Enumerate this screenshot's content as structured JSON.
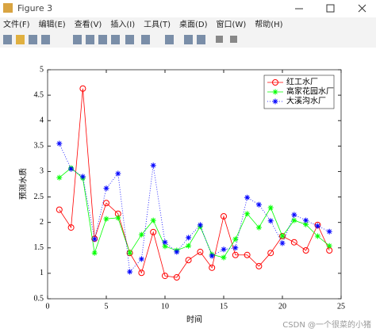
{
  "window": {
    "title": "Figure 3",
    "menu": [
      "文件(F)",
      "编辑(E)",
      "查看(V)",
      "插入(I)",
      "工具(T)",
      "桌面(D)",
      "窗口(W)",
      "帮助(H)"
    ]
  },
  "watermark": "CSDN @一个很菜的小猪",
  "chart_data": {
    "type": "line",
    "x_label": "时间",
    "y_label": "预测水质",
    "x": [
      1,
      2,
      3,
      4,
      5,
      6,
      7,
      8,
      9,
      10,
      11,
      12,
      13,
      14,
      15,
      16,
      17,
      18,
      19,
      20,
      21,
      22,
      23,
      24
    ],
    "xlim": [
      0,
      25
    ],
    "xticks": [
      0,
      5,
      10,
      15,
      20,
      25
    ],
    "ylim": [
      0.5,
      5
    ],
    "yticks": [
      0.5,
      1,
      1.5,
      2,
      2.5,
      3,
      3.5,
      4,
      4.5,
      5
    ],
    "legend": "upper right",
    "series": [
      {
        "name": "红工水厂",
        "color": "#ff0000",
        "marker": "o",
        "linestyle": "solid",
        "values": [
          2.25,
          1.9,
          4.63,
          1.68,
          2.38,
          2.17,
          1.4,
          1.01,
          1.81,
          0.95,
          0.92,
          1.26,
          1.42,
          1.11,
          2.12,
          1.36,
          1.36,
          1.14,
          1.4,
          1.73,
          1.61,
          1.45,
          1.95,
          1.45
        ]
      },
      {
        "name": "高家花园水厂",
        "color": "#00ff00",
        "marker": "*",
        "linestyle": "solid",
        "values": [
          2.88,
          3.07,
          2.87,
          1.4,
          2.07,
          2.09,
          1.4,
          1.76,
          2.04,
          1.53,
          1.45,
          1.54,
          1.92,
          1.37,
          1.31,
          1.67,
          2.17,
          1.9,
          2.29,
          1.73,
          2.04,
          1.96,
          1.73,
          1.54
        ]
      },
      {
        "name": "大溪沟水厂",
        "color": "#0000ff",
        "marker": "*",
        "linestyle": "dotted",
        "values": [
          3.55,
          3.05,
          2.9,
          1.67,
          2.67,
          2.96,
          1.03,
          1.28,
          3.12,
          1.61,
          1.42,
          1.7,
          1.95,
          1.34,
          1.47,
          1.5,
          2.49,
          2.35,
          2.03,
          1.59,
          2.15,
          2.04,
          1.93,
          1.82
        ]
      }
    ]
  }
}
